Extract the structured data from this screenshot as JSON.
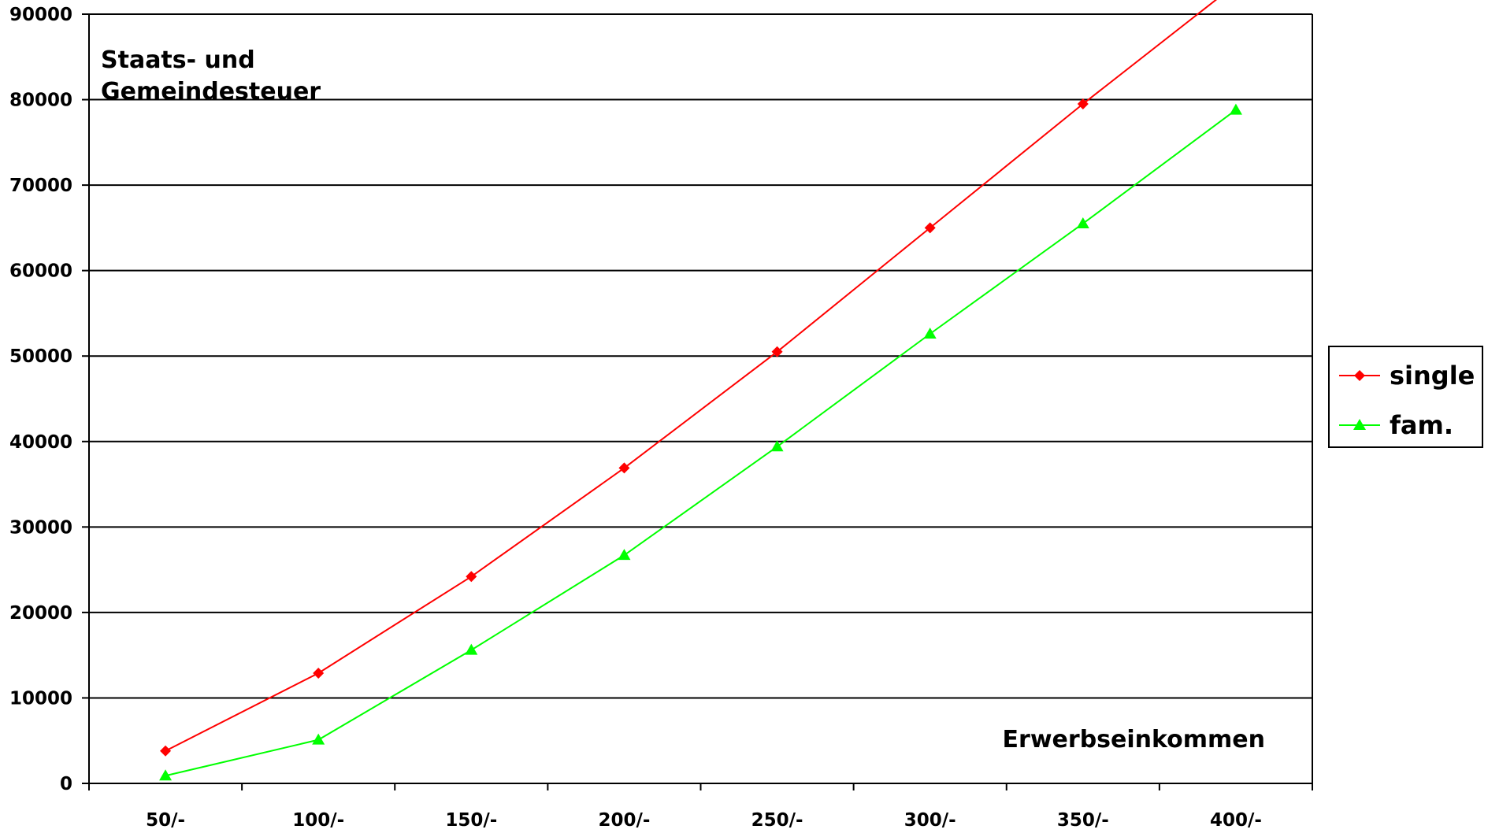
{
  "chart_data": {
    "type": "line",
    "categories": [
      "50/-",
      "100/-",
      "150/-",
      "200/-",
      "250/-",
      "300/-",
      "350/-",
      "400/-"
    ],
    "series": [
      {
        "name": "single",
        "values": [
          3800,
          12900,
          24200,
          36900,
          50500,
          65000,
          79500,
          93500
        ],
        "color": "#ff0000",
        "marker": "diamond"
      },
      {
        "name": "fam.",
        "values": [
          900,
          5100,
          15600,
          26700,
          39400,
          52600,
          65500,
          78800
        ],
        "color": "#00ff00",
        "marker": "triangle"
      }
    ],
    "ylim": [
      0,
      90000
    ],
    "yticks": [
      0,
      10000,
      20000,
      30000,
      40000,
      50000,
      60000,
      70000,
      80000,
      90000
    ],
    "ylabel": "Staats- und Gemeindesteuer",
    "ylabel_lines": [
      "Staats- und",
      "Gemeindesteuer"
    ],
    "xlabel": "Erwerbseinkommen",
    "grid": true,
    "legend": "right"
  }
}
